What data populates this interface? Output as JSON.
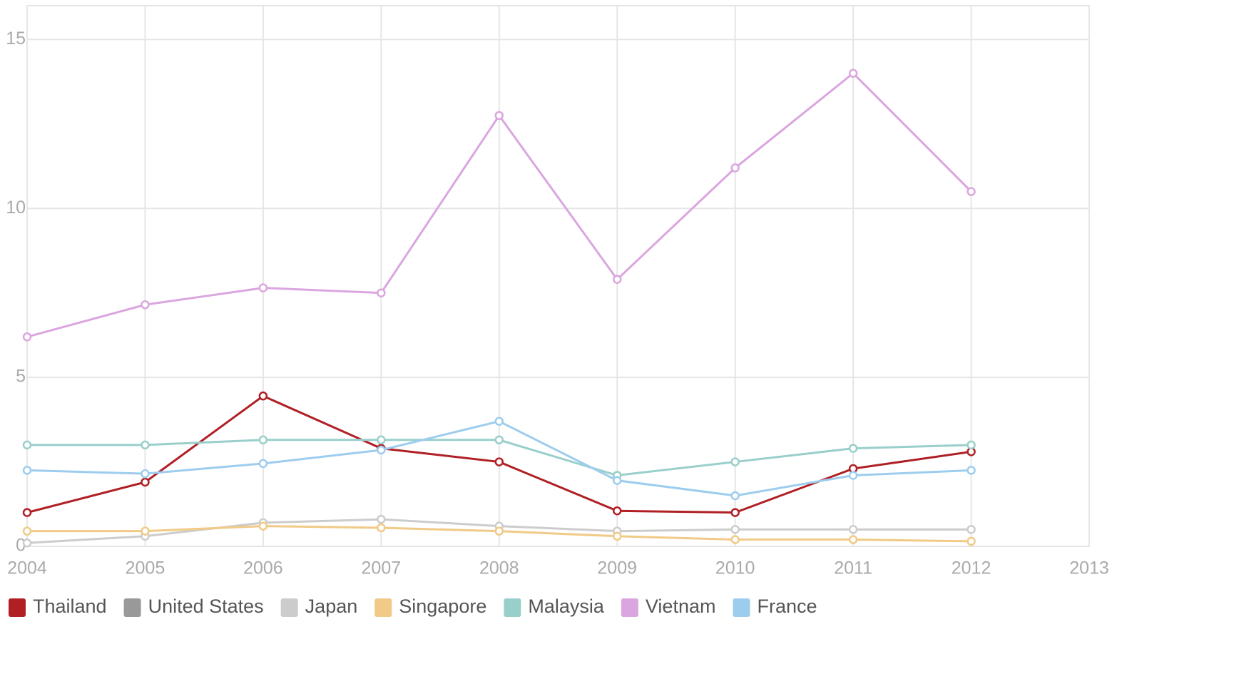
{
  "chart_data": {
    "type": "line",
    "x": [
      2004,
      2005,
      2006,
      2007,
      2008,
      2009,
      2010,
      2011,
      2012
    ],
    "xlim": [
      2004,
      2013
    ],
    "xticks": [
      2004,
      2005,
      2006,
      2007,
      2008,
      2009,
      2010,
      2011,
      2012,
      2013
    ],
    "ylim": [
      0,
      16
    ],
    "yticks": [
      0,
      5,
      10,
      15
    ],
    "grid": true,
    "legend": "bottom",
    "series": [
      {
        "name": "Thailand",
        "color": "#b01f24",
        "values": [
          1.0,
          1.9,
          4.45,
          2.9,
          2.5,
          1.05,
          1.0,
          2.3,
          2.8
        ]
      },
      {
        "name": "United States",
        "color": "#999999",
        "values": [
          null,
          null,
          null,
          null,
          null,
          null,
          null,
          null,
          null
        ]
      },
      {
        "name": "Japan",
        "color": "#cccccc",
        "values": [
          0.1,
          0.3,
          0.7,
          0.8,
          0.6,
          0.45,
          0.5,
          0.5,
          0.5
        ]
      },
      {
        "name": "Singapore",
        "color": "#f0ca86",
        "values": [
          0.45,
          0.45,
          0.6,
          0.55,
          0.45,
          0.3,
          0.2,
          0.2,
          0.15
        ]
      },
      {
        "name": "Malaysia",
        "color": "#99cfcb",
        "values": [
          3.0,
          3.0,
          3.15,
          3.15,
          3.15,
          2.1,
          2.5,
          2.9,
          3.0
        ]
      },
      {
        "name": "Vietnam",
        "color": "#dba6df",
        "values": [
          6.2,
          7.15,
          7.65,
          7.5,
          12.75,
          7.9,
          11.2,
          14.0,
          10.5
        ]
      },
      {
        "name": "France",
        "color": "#9dcdee",
        "values": [
          2.25,
          2.15,
          2.45,
          2.85,
          3.7,
          1.95,
          1.5,
          2.1,
          2.25
        ]
      }
    ]
  }
}
